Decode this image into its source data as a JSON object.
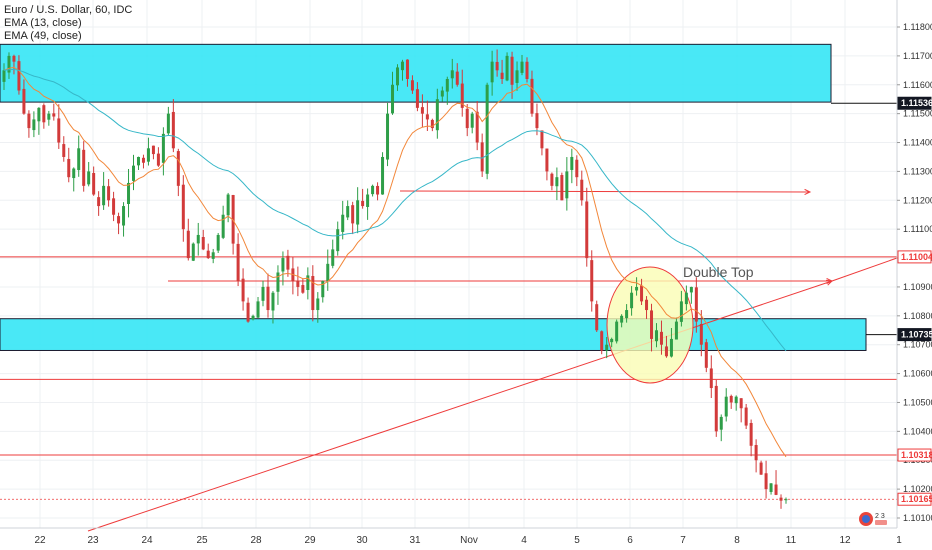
{
  "legend": {
    "symbol": "Euro / U.S. Dollar, 60, IDC",
    "ema1": "EMA (13, close)",
    "ema2": "EMA (49, close)"
  },
  "annotation": {
    "double_top": "Double Top"
  },
  "logo": {
    "text": "2 3"
  },
  "colors": {
    "candle_up": "#2e9e48",
    "candle_down": "#d23a3a",
    "ema13": "#f2873a",
    "ema49": "#37b7c8",
    "hline": "#ee3b3b",
    "zone_fill": "#35e6f5",
    "zone_border": "#1a1a2e",
    "circle_fill": "#fafcb4",
    "circle_stroke": "#ee3b3b"
  },
  "chart_data": {
    "type": "candlestick",
    "y_axis": {
      "min": 1.101,
      "max": 1.118,
      "ticks": [
        "1.10100",
        "1.10200",
        "1.10300",
        "1.10400",
        "1.10500",
        "1.10600",
        "1.10700",
        "1.10800",
        "1.10900",
        "1.11000",
        "1.11100",
        "1.11200",
        "1.11300",
        "1.11400",
        "1.11500",
        "1.11600",
        "1.11700",
        "1.11800"
      ],
      "tick_values": [
        1.101,
        1.102,
        1.103,
        1.104,
        1.105,
        1.106,
        1.107,
        1.108,
        1.109,
        1.11,
        1.111,
        1.112,
        1.113,
        1.114,
        1.115,
        1.116,
        1.117,
        1.118
      ]
    },
    "x_axis": {
      "labels": [
        "22",
        "23",
        "24",
        "25",
        "28",
        "29",
        "30",
        "31",
        "Nov",
        "4",
        "5",
        "6",
        "7",
        "8",
        "11",
        "12",
        "1"
      ]
    },
    "price_tags": [
      {
        "value": 1.11536,
        "label": "1.11536",
        "style": "dark"
      },
      {
        "value": 1.11004,
        "label": "1.11004",
        "style": "red"
      },
      {
        "value": 1.10735,
        "label": "1.10735",
        "style": "dark"
      },
      {
        "value": 1.10318,
        "label": "1.10318",
        "style": "red"
      },
      {
        "value": 1.10165,
        "label": "1.10165",
        "style": "red"
      }
    ],
    "zones": [
      {
        "top": 1.1174,
        "bottom": 1.1154
      },
      {
        "top": 1.1079,
        "bottom": 1.1068
      }
    ],
    "horizontal_lines": [
      1.11004,
      1.10318,
      1.10165,
      1.1058
    ],
    "close_series": [
      1.1165,
      1.117,
      1.1168,
      1.1158,
      1.115,
      1.1145,
      1.1148,
      1.1152,
      1.1147,
      1.115,
      1.1149,
      1.114,
      1.1135,
      1.1128,
      1.1131,
      1.1138,
      1.1125,
      1.113,
      1.1122,
      1.1118,
      1.1125,
      1.112,
      1.1115,
      1.1112,
      1.1118,
      1.1126,
      1.1132,
      1.1135,
      1.1133,
      1.1138,
      1.1136,
      1.1132,
      1.1143,
      1.115,
      1.1138,
      1.1125,
      1.111,
      1.11,
      1.1105,
      1.1108,
      1.1103,
      1.11,
      1.1102,
      1.1108,
      1.1115,
      1.1122,
      1.1105,
      1.1092,
      1.1085,
      1.1078,
      1.108,
      1.1085,
      1.109,
      1.1082,
      1.1088,
      1.1095,
      1.11,
      1.1096,
      1.1092,
      1.109,
      1.1088,
      1.1094,
      1.1082,
      1.1086,
      1.1092,
      1.1098,
      1.1103,
      1.111,
      1.1115,
      1.1118,
      1.1112,
      1.112,
      1.1118,
      1.1122,
      1.1125,
      1.1122,
      1.1135,
      1.115,
      1.116,
      1.1166,
      1.1168,
      1.1162,
      1.1158,
      1.1152,
      1.115,
      1.1148,
      1.1145,
      1.1155,
      1.1158,
      1.1162,
      1.1165,
      1.116,
      1.1152,
      1.1145,
      1.115,
      1.114,
      1.113,
      1.116,
      1.1168,
      1.1165,
      1.1162,
      1.117,
      1.116,
      1.1165,
      1.1168,
      1.1162,
      1.115,
      1.1145,
      1.1138,
      1.113,
      1.1125,
      1.1128,
      1.112,
      1.113,
      1.1135,
      1.1128,
      1.112,
      1.11,
      1.1085,
      1.1075,
      1.1068,
      1.107,
      1.1072,
      1.1078,
      1.108,
      1.1082,
      1.1088,
      1.109,
      1.1085,
      1.1082,
      1.1072,
      1.1075,
      1.107,
      1.1066,
      1.1072,
      1.1078,
      1.1085,
      1.1088,
      1.109,
      1.1078,
      1.107,
      1.1062,
      1.1055,
      1.104,
      1.1045,
      1.1052,
      1.105,
      1.1052,
      1.1048,
      1.1042,
      1.1035,
      1.103,
      1.1025,
      1.102,
      1.1022,
      1.1018,
      1.1016,
      1.10165
    ],
    "ema13_visible_range": [
      0,
      149
    ],
    "ema49_visible_range": [
      0,
      149
    ]
  }
}
